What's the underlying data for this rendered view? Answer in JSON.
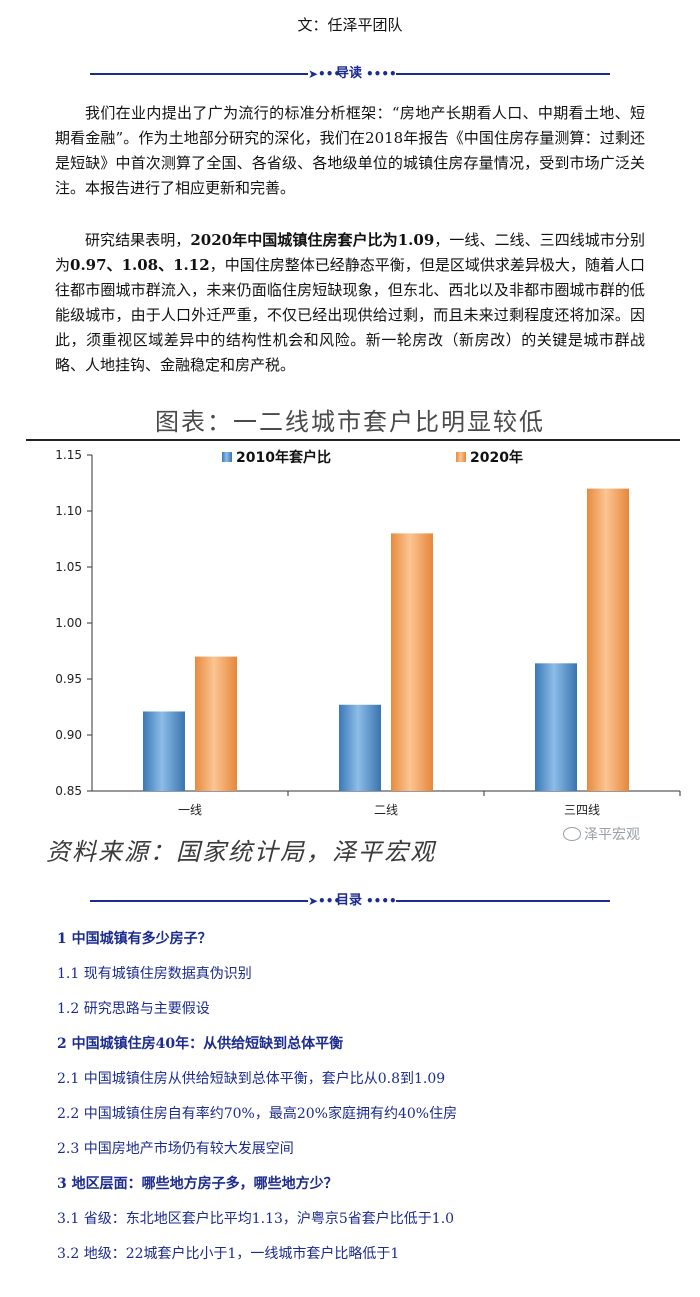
{
  "author": "文：任泽平团队",
  "sections": {
    "intro_label": "导读",
    "toc_label": "目录"
  },
  "paragraphs": [
    {
      "parts": [
        {
          "text": "我们在业内提出了广为流行的标准分析框架：“房地产长期看人口、中期看土地、短期看金融”。作为土地部分研究的深化，我们在2018年报告《中国住房存量测算：过剩还是短缺》中首次测算了全国、各省级、各地级单位的城镇住房存量情况，受到市场广泛关注。本报告进行了相应更新和完善。",
          "bold": false
        }
      ]
    },
    {
      "parts": [
        {
          "text": "研究结果表明，",
          "bold": false
        },
        {
          "text": "2020年中国城镇住房套户比为1.09",
          "bold": true
        },
        {
          "text": "，一线、二线、三四线城市分别为",
          "bold": false
        },
        {
          "text": "0.97、1.08、1.12",
          "bold": true
        },
        {
          "text": "，中国住房整体已经静态平衡，但是区域供求差异极大，随着人口往都市圈城市群流入，未来仍面临住房短缺现象，但东北、西北以及非都市圈城市群的低能级城市，由于人口外迁严重，不仅已经出现供给过剩，而且未来过剩程度还将加深。因此，须重视区域差异中的结构性机会和风险。新一轮房改（新房改）的关键是城市群战略、人地挂钩、金融稳定和房产税。",
          "bold": false
        }
      ]
    }
  ],
  "chart_title": "图表：一二线城市套户比明显较低",
  "chart_source": "资料来源：国家统计局，泽平宏观",
  "watermark": "泽平宏观",
  "chart_data": {
    "type": "bar",
    "categories": [
      "一线",
      "二线",
      "三四线"
    ],
    "series": [
      {
        "name": "2010年套户比",
        "values": [
          0.921,
          0.927,
          0.964
        ],
        "color": "#4f8fcc"
      },
      {
        "name": "2020年",
        "values": [
          0.97,
          1.08,
          1.12
        ],
        "color": "#f3a25e"
      }
    ],
    "ylim": [
      0.85,
      1.15
    ],
    "yticks": [
      "0.85",
      "0.90",
      "0.95",
      "1.00",
      "1.05",
      "1.10",
      "1.15"
    ],
    "legend_position": "top",
    "grid": false
  },
  "toc": [
    {
      "text": "1 中国城镇有多少房子？",
      "level": 1
    },
    {
      "text": "1.1 现有城镇住房数据真伪识别",
      "level": 2
    },
    {
      "text": "1.2 研究思路与主要假设",
      "level": 2
    },
    {
      "text": "2 中国城镇住房40年：从供给短缺到总体平衡",
      "level": 1
    },
    {
      "text": "2.1 中国城镇住房从供给短缺到总体平衡，套户比从0.8到1.09",
      "level": 2
    },
    {
      "text": "2.2 中国城镇住房自有率约70%，最高20%家庭拥有约40%住房",
      "level": 2
    },
    {
      "text": "2.3 中国房地产市场仍有较大发展空间",
      "level": 2
    },
    {
      "text": "3 地区层面：哪些地方房子多，哪些地方少？",
      "level": 1
    },
    {
      "text": "3.1 省级：东北地区套户比平均1.13，沪粤京5省套户比低于1.0",
      "level": 2
    },
    {
      "text": "3.2 地级：22城套户比小于1，一线城市套户比略低于1",
      "level": 2
    }
  ]
}
